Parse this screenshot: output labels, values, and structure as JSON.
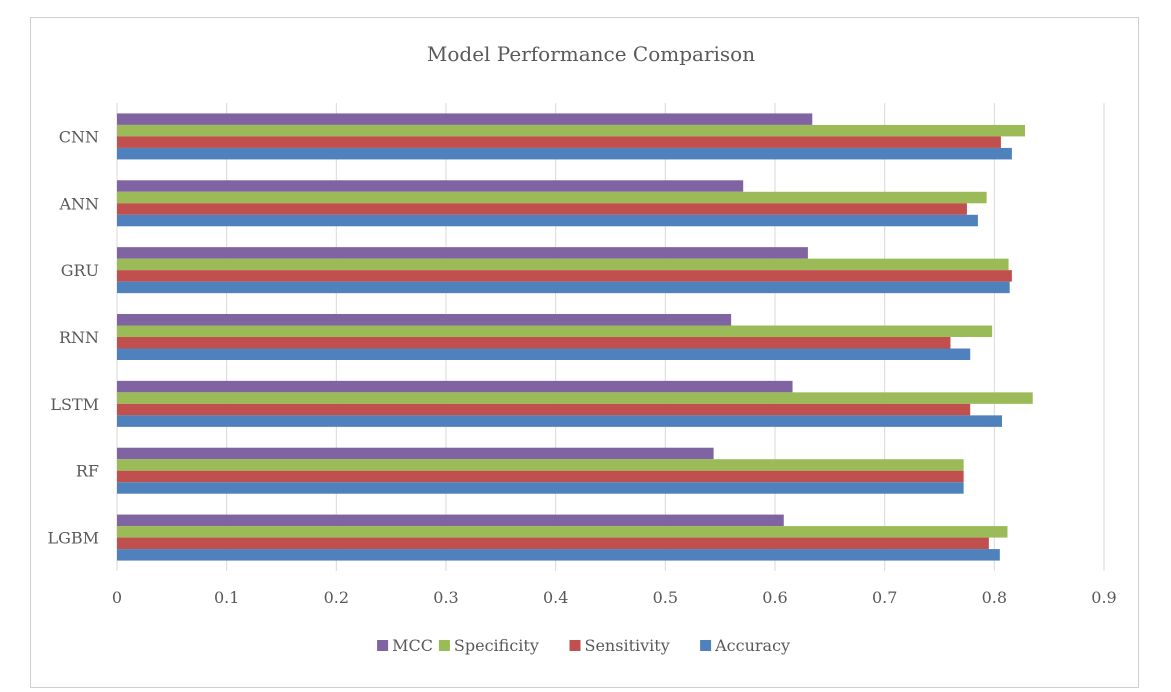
{
  "chart_data": {
    "type": "bar",
    "orientation": "horizontal",
    "title": "Model Performance Comparison",
    "xlabel": "",
    "ylabel": "",
    "xlim": [
      0,
      0.9
    ],
    "x_ticks": [
      "0",
      "0.1",
      "0.2",
      "0.3",
      "0.4",
      "0.5",
      "0.6",
      "0.7",
      "0.8",
      "0.9"
    ],
    "grid": "vertical",
    "legend_position": "bottom",
    "categories": [
      "CNN",
      "ANN",
      "GRU",
      "RNN",
      "LSTM",
      "RF",
      "LGBM"
    ],
    "series": [
      {
        "name": "MCC",
        "color": "#8064a2",
        "values": [
          0.634,
          0.571,
          0.63,
          0.56,
          0.616,
          0.544,
          0.608
        ]
      },
      {
        "name": "Specificity",
        "color": "#9bbb59",
        "values": [
          0.828,
          0.793,
          0.813,
          0.798,
          0.835,
          0.772,
          0.812
        ]
      },
      {
        "name": "Sensitivity",
        "color": "#c0504d",
        "values": [
          0.806,
          0.775,
          0.816,
          0.76,
          0.778,
          0.772,
          0.795
        ]
      },
      {
        "name": "Accuracy",
        "color": "#4f81bd",
        "values": [
          0.816,
          0.785,
          0.814,
          0.778,
          0.807,
          0.772,
          0.805
        ]
      }
    ]
  }
}
